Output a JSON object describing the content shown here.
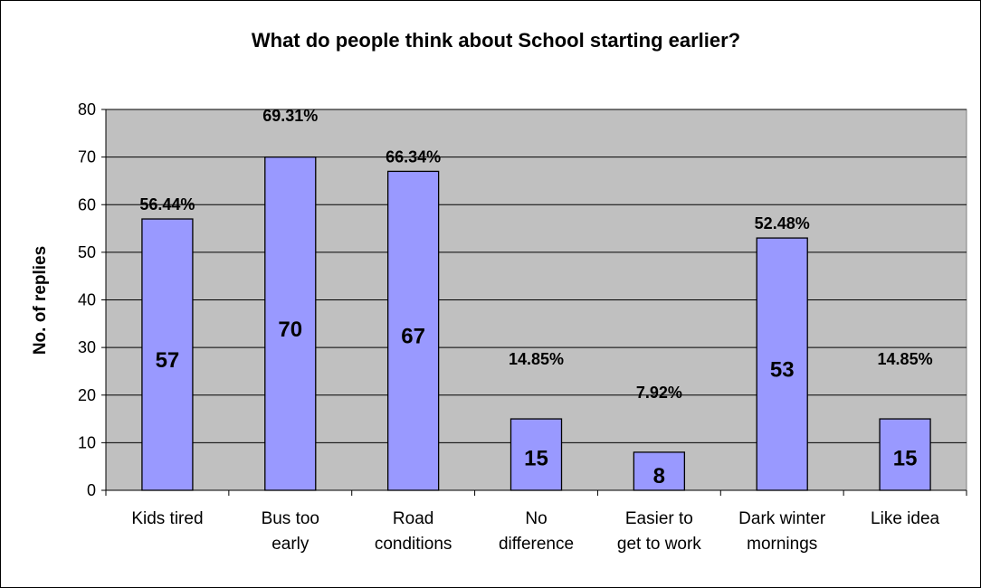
{
  "chart_data": {
    "type": "bar",
    "title": "What do people think about School starting earlier?",
    "xlabel": "",
    "ylabel": "No. of replies",
    "ylim": [
      0,
      80
    ],
    "yticks": [
      0,
      10,
      20,
      30,
      40,
      50,
      60,
      70,
      80
    ],
    "grid": true,
    "legend": "none",
    "categories": [
      [
        "Kids tired"
      ],
      [
        "Bus too",
        "early"
      ],
      [
        "Road",
        "conditions"
      ],
      [
        "No",
        "difference"
      ],
      [
        "Easier to",
        "get to work"
      ],
      [
        "Dark winter",
        "mornings"
      ],
      [
        "Like idea"
      ]
    ],
    "values": [
      57,
      70,
      67,
      15,
      8,
      53,
      15
    ],
    "percent_labels": [
      "56.44%",
      "69.31%",
      "66.34%",
      "14.85%",
      "7.92%",
      "52.48%",
      "14.85%"
    ],
    "colors": {
      "bar_fill": "#9999ff",
      "bar_stroke": "#000000",
      "plot_background": "#c0c0c0",
      "gridline": "#000000",
      "text": "#000000"
    }
  }
}
